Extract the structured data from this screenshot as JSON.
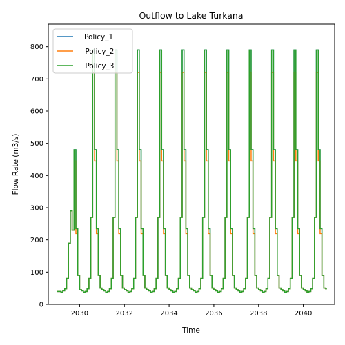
{
  "chart_data": {
    "type": "line",
    "title": "Outflow to Lake Turkana",
    "xlabel": "Time",
    "ylabel": "Flow Rate (m3/s)",
    "xlim": [
      2028.6,
      2041.4
    ],
    "ylim": [
      0,
      870
    ],
    "xticks": [
      2030,
      2032,
      2034,
      2036,
      2038,
      2040
    ],
    "yticks": [
      0,
      100,
      200,
      300,
      400,
      500,
      600,
      700,
      800
    ],
    "x_range": [
      2029.0,
      2041.0
    ],
    "grid": false,
    "legend_position": "top-left",
    "series": [
      {
        "name": "Policy_1",
        "color": "#1f77b4",
        "label_text": "Policy_1",
        "peak": 790,
        "june_value": 480,
        "september_value": 235
      },
      {
        "name": "Policy_2",
        "color": "#ff7f0e",
        "label_text": " Policy_2",
        "peak": 720,
        "june_value": 445,
        "september_value": 220
      },
      {
        "name": "Policy_3",
        "color": "#2ca02c",
        "label_text": " Policy_3",
        "peak": 790,
        "june_value": 480,
        "september_value": 235
      }
    ],
    "first_year_values": [
      40,
      40,
      38,
      42,
      48,
      80,
      190,
      290,
      230,
      480,
      235,
      90
    ],
    "typical_monthly_pattern": [
      45,
      42,
      38,
      40,
      48,
      80,
      270,
      790,
      480,
      235,
      90,
      50
    ],
    "end_value": 48
  }
}
